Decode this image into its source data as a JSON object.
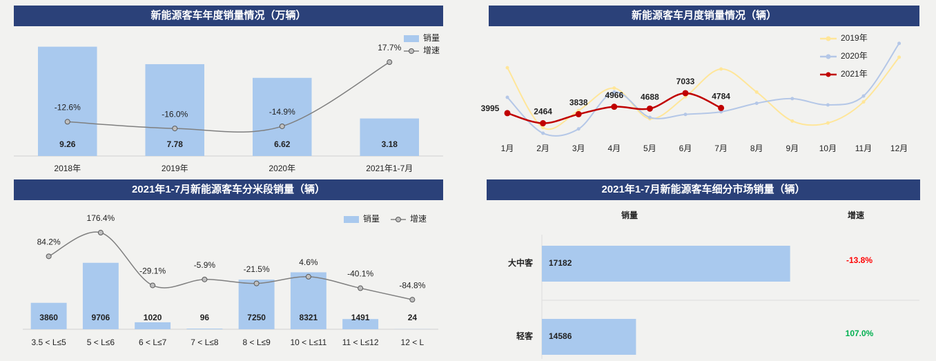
{
  "chart_data": [
    {
      "type": "combo",
      "title": "新能源客车年度销量情况（万辆）",
      "categories": [
        "2018年",
        "2019年",
        "2020年",
        "2021年1-7月"
      ],
      "series": [
        {
          "name": "销量",
          "color": "#a9c9ee",
          "values": [
            9.26,
            7.78,
            6.62,
            3.18
          ]
        },
        {
          "name": "增速",
          "color": "#7f7f7f",
          "axis": "y2",
          "values": [
            -12.6,
            -16.0,
            -14.9,
            17.7
          ],
          "value_labels": [
            "-12.6%",
            "-16.0%",
            "-14.9%",
            "17.7%"
          ]
        }
      ],
      "ylim": [
        0,
        10
      ],
      "y2lim": [
        -30,
        30
      ]
    },
    {
      "type": "line",
      "title": "新能源客车月度销量情况（辆）",
      "categories": [
        "1月",
        "2月",
        "3月",
        "4月",
        "5月",
        "6月",
        "7月",
        "8月",
        "9月",
        "10月",
        "11月",
        "12月"
      ],
      "series": [
        {
          "name": "2019年",
          "color": "#ffe699",
          "values": [
            10900,
            1800,
            4400,
            7800,
            3150,
            6500,
            10700,
            7200,
            2800,
            2500,
            5700,
            12500
          ]
        },
        {
          "name": "2020年",
          "color": "#b4c7e7",
          "values": [
            6400,
            950,
            1600,
            7200,
            3350,
            3800,
            4200,
            5500,
            6200,
            5250,
            6600,
            14600
          ]
        },
        {
          "name": "2021年",
          "color": "#c00000",
          "values": [
            3995,
            2464,
            3838,
            4966,
            4688,
            7033,
            4784,
            null,
            null,
            null,
            null,
            null
          ],
          "labels": true
        }
      ],
      "ylim": [
        0,
        17000
      ]
    },
    {
      "type": "combo",
      "title": "2021年1-7月新能源客车分米段销量（辆）",
      "categories": [
        "3.5 < L≤5",
        "5 < L≤6",
        "6 < L≤7",
        "7 < L≤8",
        "8 < L≤9",
        "10 < L≤11",
        "11 < L≤12",
        "12 < L"
      ],
      "series": [
        {
          "name": "销量",
          "color": "#a9c9ee",
          "values": [
            3860,
            9706,
            1020,
            96,
            7250,
            8321,
            1491,
            24
          ]
        },
        {
          "name": "增速",
          "color": "#7f7f7f",
          "axis": "y2",
          "values": [
            84.2,
            176.4,
            -29.1,
            -5.9,
            -21.5,
            4.6,
            -40.1,
            -84.8
          ],
          "value_labels": [
            "84.2%",
            "176.4%",
            "-29.1%",
            "-5.9%",
            "-21.5%",
            "4.6%",
            "-40.1%",
            "-84.8%"
          ]
        }
      ],
      "ylim": [
        0,
        12000
      ],
      "y2lim": [
        -200,
        120
      ]
    },
    {
      "type": "hbar",
      "title": "2021年1-7月新能源客车细分市场销量（辆）",
      "categories": [
        "大中客",
        "轻客"
      ],
      "series": [
        {
          "name": "销量",
          "color": "#a9c9ee",
          "values": [
            17182,
            14586
          ]
        },
        {
          "name": "增速",
          "colors": [
            "#ff0000",
            "#00b050"
          ],
          "values": [
            -13.8,
            107.0
          ],
          "value_labels": [
            "-13.8%",
            "107.0%"
          ]
        }
      ],
      "xlim": [
        13000,
        18000
      ]
    }
  ]
}
